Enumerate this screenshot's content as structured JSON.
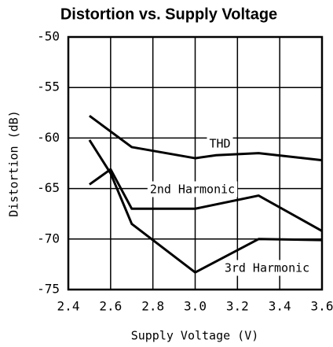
{
  "chart_data": {
    "type": "line",
    "title": "Distortion vs. Supply Voltage",
    "x_label": "Supply Voltage (V)",
    "y_label": "Distortion (dB)",
    "xlim": [
      2.4,
      3.6
    ],
    "xticks": [
      2.4,
      2.6,
      2.8,
      {
        "value": 3,
        "label": "3.0"
      },
      3.2,
      3.4,
      3.6
    ],
    "ylim": [
      -75,
      -50
    ],
    "yticks": [
      -75,
      -70,
      -65,
      -60,
      -55,
      -50
    ],
    "grid": true,
    "series": [
      {
        "name": "THD",
        "color": "#000000",
        "x": [
          2.5,
          2.7,
          3.0,
          3.1,
          3.3,
          3.6
        ],
        "values": [
          -57.8,
          -60.9,
          -62,
          -61.7,
          -61.5,
          -62.2
        ]
      },
      {
        "name": "2nd Harmonic",
        "color": "#000000",
        "x": [
          2.5,
          2.6,
          2.7,
          3.0,
          3.3,
          3.6
        ],
        "values": [
          -64.6,
          -63.1,
          -67,
          -67,
          -65.7,
          -69.2
        ]
      },
      {
        "name": "3rd Harmonic",
        "color": "#000000",
        "x": [
          2.5,
          2.6,
          2.7,
          3.0,
          3.3,
          3.6
        ],
        "values": [
          -60.2,
          -63.5,
          -68.5,
          -73.3,
          -70,
          -70.1
        ]
      }
    ]
  }
}
